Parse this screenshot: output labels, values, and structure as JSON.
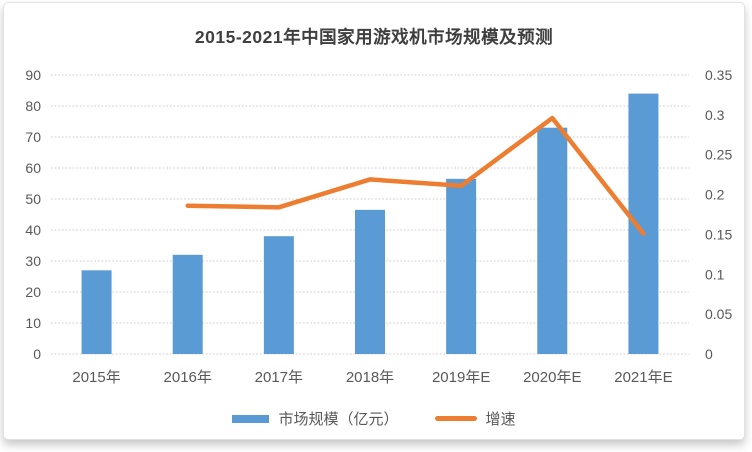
{
  "chart_data": {
    "type": "combo-bar-line",
    "title": "2015-2021年中国家用游戏机市场规模及预测",
    "categories": [
      "2015年",
      "2016年",
      "2017年",
      "2018年",
      "2019年E",
      "2020年E",
      "2021年E"
    ],
    "series": [
      {
        "name": "市场规模（亿元）",
        "chart_type": "bar",
        "axis": "left",
        "color": "#5B9BD5",
        "values": [
          27,
          32,
          38,
          46.5,
          56.5,
          73,
          84
        ]
      },
      {
        "name": "增速",
        "chart_type": "line",
        "axis": "right",
        "color": "#ED7D31",
        "values": [
          null,
          0.186,
          0.184,
          0.219,
          0.211,
          0.296,
          0.151
        ]
      }
    ],
    "left_axis": {
      "min": 0,
      "max": 90,
      "step": 10,
      "tick_labels": [
        "0",
        "10",
        "20",
        "30",
        "40",
        "50",
        "60",
        "70",
        "80",
        "90"
      ]
    },
    "right_axis": {
      "min": 0,
      "max": 0.35,
      "step": 0.05,
      "tick_labels": [
        "0",
        "0.05",
        "0.1",
        "0.15",
        "0.2",
        "0.25",
        "0.3",
        "0.35"
      ]
    },
    "grid": true,
    "grid_style": "dotted",
    "legend_position": "bottom",
    "colors": {
      "grid": "#cfcfcf",
      "tick_text": "#595959",
      "title_text": "#3f3f3f",
      "background": "#ffffff"
    }
  }
}
